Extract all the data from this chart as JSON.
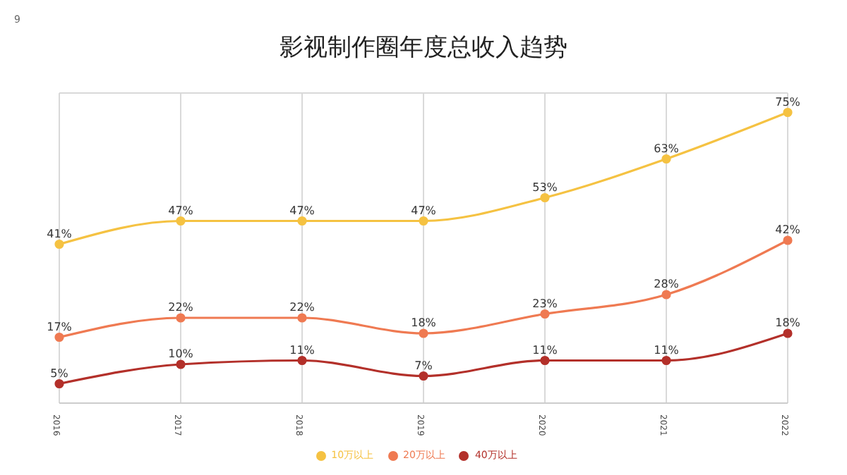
{
  "chart_data": {
    "type": "line",
    "title": "影视制作圈年度总收入趋势",
    "annotations": [
      "9"
    ],
    "categories": [
      "2016",
      "2017",
      "2018",
      "2019",
      "2020",
      "2021",
      "2022"
    ],
    "series": [
      {
        "name": "10万以上",
        "color": "#f5c242",
        "values": [
          41,
          47,
          47,
          47,
          53,
          63,
          75
        ],
        "value_labels": [
          "41%",
          "47%",
          "47%",
          "47%",
          "53%",
          "63%",
          "75%"
        ]
      },
      {
        "name": "20万以上",
        "color": "#ef7a52",
        "values": [
          17,
          22,
          22,
          18,
          23,
          28,
          42
        ],
        "value_labels": [
          "17%",
          "22%",
          "22%",
          "18%",
          "23%",
          "28%",
          "42%"
        ]
      },
      {
        "name": "40万以上",
        "color": "#b3302a",
        "values": [
          5,
          10,
          11,
          7,
          11,
          11,
          18
        ],
        "value_labels": [
          "5%",
          "10%",
          "11%",
          "7%",
          "11%",
          "11%",
          "18%"
        ]
      }
    ],
    "tick_labels": "x",
    "grid": true,
    "legend": "bottom",
    "marker": "circle"
  }
}
